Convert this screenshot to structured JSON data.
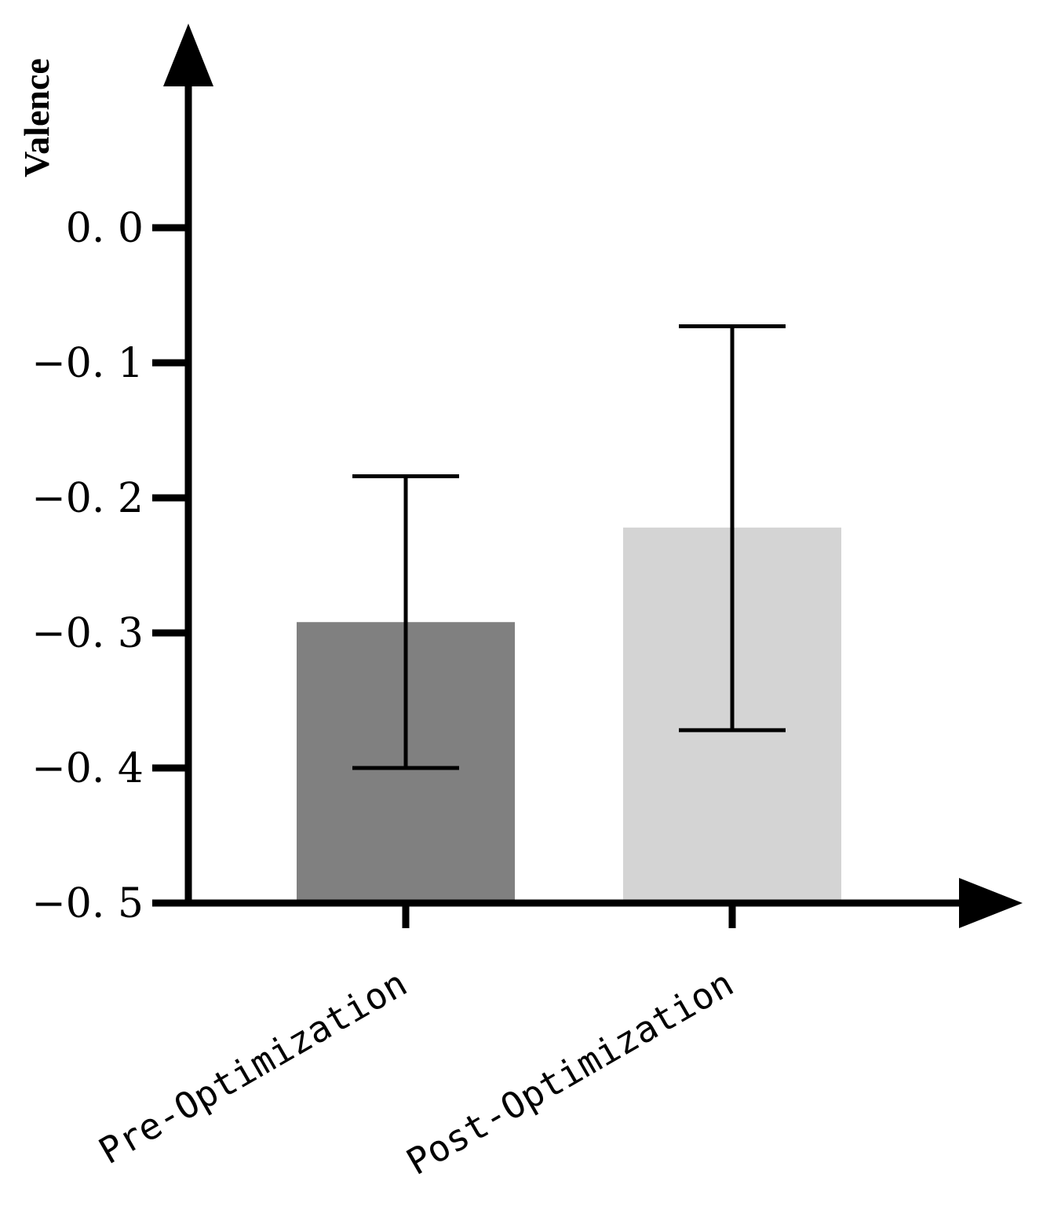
{
  "chart_data": {
    "type": "bar",
    "categories": [
      "Pre-Optimization",
      "Post-Optimization"
    ],
    "values": [
      -0.292,
      -0.222
    ],
    "error_high": [
      -0.184,
      -0.073
    ],
    "error_low": [
      -0.4,
      -0.372
    ],
    "bar_colors": [
      "#808080",
      "#d4d4d4"
    ],
    "baseline": -0.5,
    "ylabel": "Valence",
    "xlabel": "",
    "ylim": [
      -0.5,
      0.0
    ],
    "yticks": [
      0.0,
      -0.1,
      -0.2,
      -0.3,
      -0.4,
      -0.5
    ],
    "ytick_labels": [
      "0. 0",
      "−0. 1",
      "−0. 2",
      "−0. 3",
      "−0. 4",
      "−0. 5"
    ],
    "grid": false,
    "legend": "none"
  }
}
